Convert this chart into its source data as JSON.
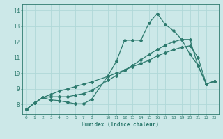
{
  "xlabel": "Humidex (Indice chaleur)",
  "bg_color": "#cce8e8",
  "grid_color": "#b0d8d8",
  "line_color": "#2d7a6e",
  "xlim": [
    -0.5,
    23.5
  ],
  "ylim": [
    7.4,
    14.4
  ],
  "xticks": [
    0,
    1,
    2,
    3,
    4,
    5,
    6,
    7,
    8,
    10,
    11,
    12,
    13,
    14,
    15,
    16,
    17,
    18,
    19,
    20,
    21,
    22,
    23
  ],
  "yticks": [
    8,
    9,
    10,
    11,
    12,
    13,
    14
  ],
  "line1_x": [
    0,
    1,
    2,
    3,
    4,
    5,
    6,
    7,
    8,
    10,
    11,
    12,
    13,
    14,
    15,
    16,
    17,
    18,
    19,
    20,
    21,
    22,
    23
  ],
  "line1_y": [
    7.7,
    8.1,
    8.45,
    8.3,
    8.25,
    8.15,
    8.05,
    8.05,
    8.35,
    9.85,
    10.75,
    12.1,
    12.1,
    12.1,
    13.2,
    13.8,
    13.1,
    12.7,
    12.15,
    11.2,
    10.5,
    9.3,
    9.5
  ],
  "line2_x": [
    0,
    1,
    2,
    3,
    4,
    5,
    6,
    7,
    8,
    10,
    11,
    12,
    13,
    14,
    15,
    16,
    17,
    18,
    19,
    20,
    21,
    22,
    23
  ],
  "line2_y": [
    7.7,
    8.1,
    8.45,
    8.5,
    8.5,
    8.5,
    8.6,
    8.7,
    8.9,
    9.55,
    9.85,
    10.2,
    10.5,
    10.85,
    11.2,
    11.5,
    11.8,
    12.0,
    12.15,
    12.15,
    10.45,
    9.3,
    9.5
  ],
  "line3_x": [
    0,
    1,
    2,
    3,
    4,
    5,
    6,
    7,
    8,
    10,
    11,
    12,
    13,
    14,
    15,
    16,
    17,
    18,
    19,
    20,
    21,
    22,
    23
  ],
  "line3_y": [
    7.7,
    8.1,
    8.45,
    8.65,
    8.85,
    9.0,
    9.15,
    9.3,
    9.45,
    9.8,
    10.0,
    10.2,
    10.42,
    10.62,
    10.82,
    11.1,
    11.3,
    11.5,
    11.65,
    11.75,
    11.0,
    9.3,
    9.5
  ]
}
